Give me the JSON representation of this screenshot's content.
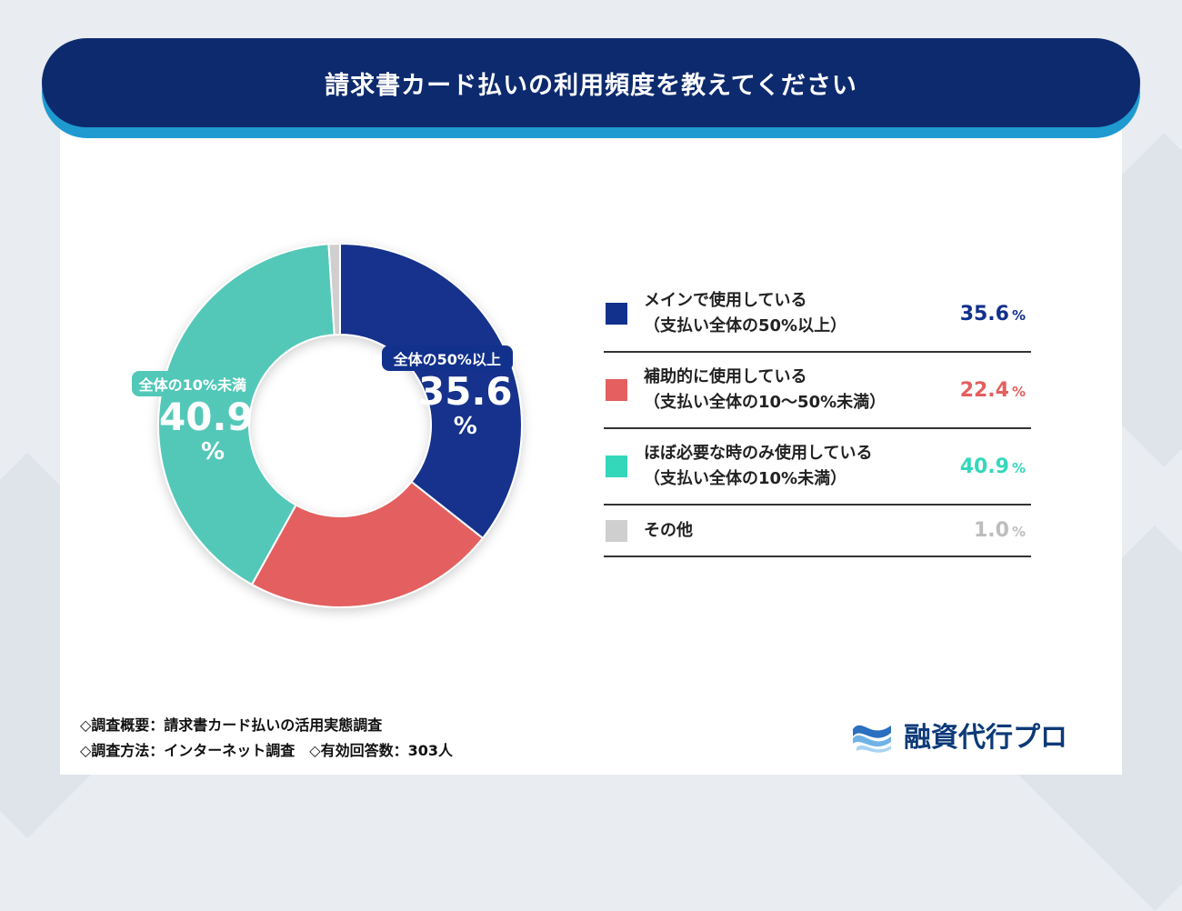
{
  "title": "請求書カード払いの利用頻度を教えてください",
  "chart_data": {
    "type": "pie",
    "donut": true,
    "categories": [
      "メインで使用している（支払い全体の50%以上）",
      "補助的に使用している（支払い全体の10〜50%未満）",
      "ほぼ必要な時のみ使用している（支払い全体の10%未満）",
      "その他"
    ],
    "values": [
      35.6,
      22.4,
      40.9,
      1.0
    ],
    "colors": [
      "#12318c",
      "#e45f5f",
      "#52c8b8",
      "#cfcfcf"
    ],
    "legend_colors": [
      "#12318c",
      "#e45f5f",
      "#35d7bb",
      "#cfcfcf"
    ],
    "legend_placement": "right",
    "slice_labels": [
      {
        "tag": "全体の50%以上",
        "value": "35.6",
        "unit": "%"
      },
      {
        "tag": "全体の10%未満",
        "value": "40.9",
        "unit": "%"
      }
    ]
  },
  "legend": [
    {
      "line1": "メインで使用している",
      "line2": "（支払い全体の50%以上）",
      "value": "35.6",
      "unit": "%"
    },
    {
      "line1": "補助的に使用している",
      "line2": "（支払い全体の10〜50%未満）",
      "value": "22.4",
      "unit": "%"
    },
    {
      "line1": "ほぼ必要な時のみ使用している",
      "line2": "（支払い全体の10%未満）",
      "value": "40.9",
      "unit": "%"
    },
    {
      "line1": "その他",
      "line2": "",
      "value": "1.0",
      "unit": "%"
    }
  ],
  "notes": {
    "summary": "◇調査概要：請求書カード払いの活用実態調査",
    "method": "◇調査方法：インターネット調査　◇有効回答数：303人"
  },
  "brand": {
    "name": "融資代行プロ"
  }
}
